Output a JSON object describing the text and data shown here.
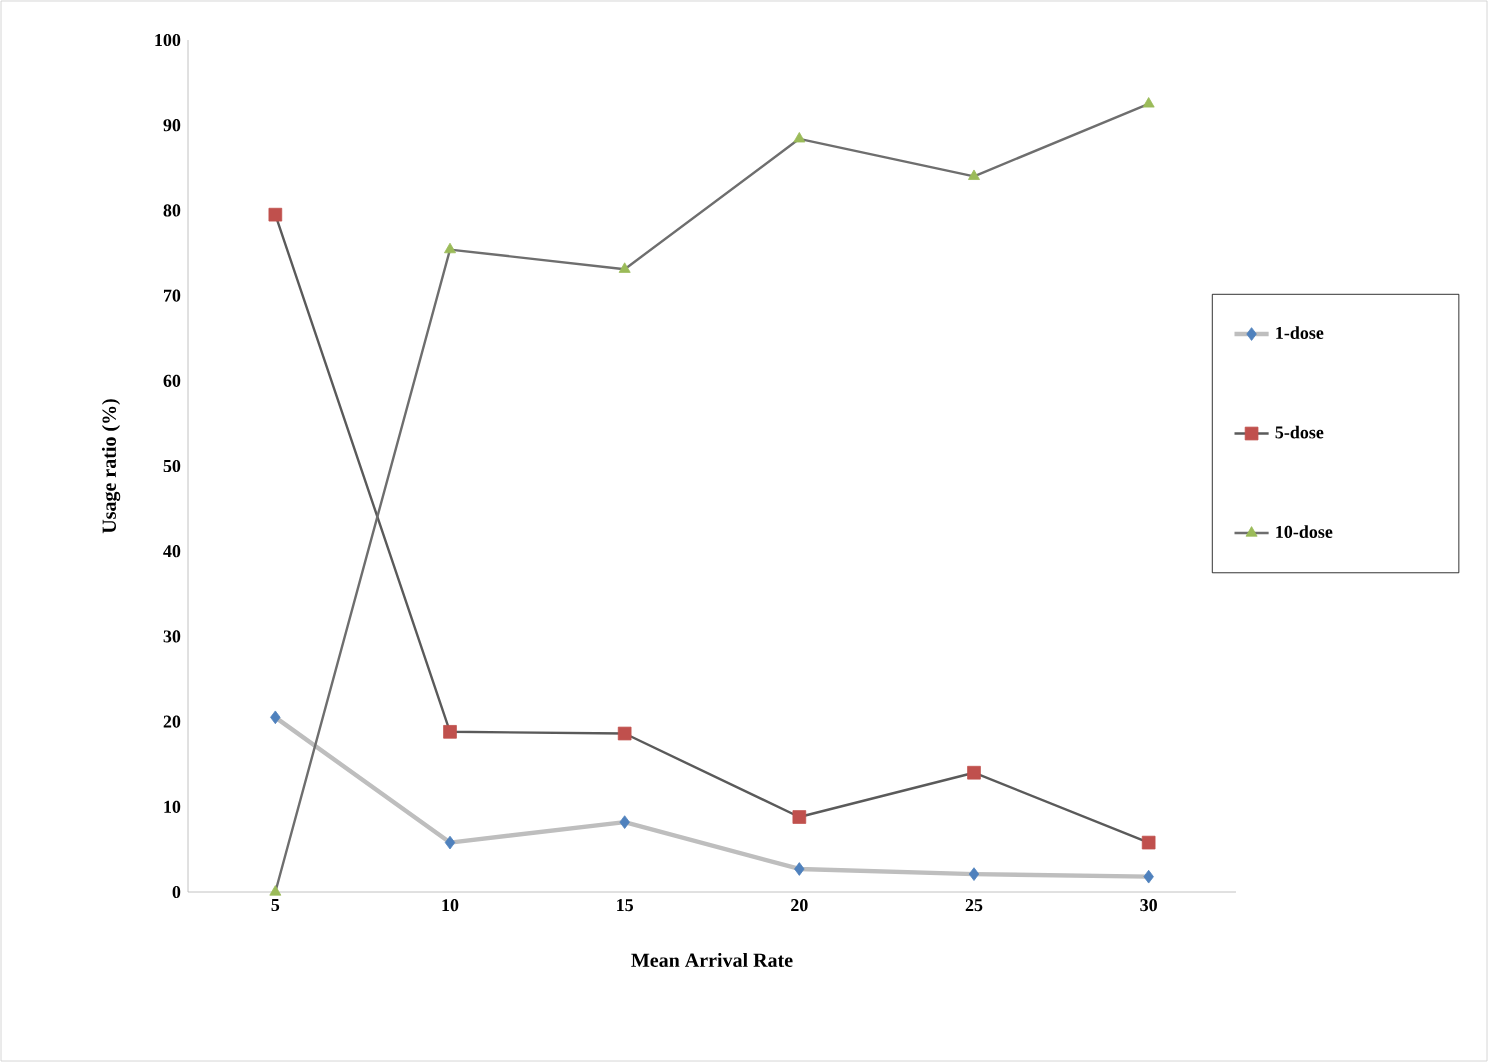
{
  "chart_data": {
    "type": "line",
    "xlabel": "Mean Arrival Rate",
    "ylabel": "Usage ratio (%)",
    "categories": [
      "5",
      "10",
      "15",
      "20",
      "25",
      "30"
    ],
    "series": [
      {
        "name": "1-dose",
        "color": "#4f81bd",
        "marker": "diamond",
        "values": [
          20.5,
          5.8,
          8.2,
          2.7,
          2.1,
          1.8
        ]
      },
      {
        "name": "5-dose",
        "color": "#c0504d",
        "marker": "square",
        "values": [
          79.5,
          18.8,
          18.6,
          8.8,
          14.0,
          5.8
        ]
      },
      {
        "name": "10-dose",
        "color": "#9bbb59",
        "marker": "triangle",
        "values": [
          0,
          75.4,
          73.1,
          88.4,
          84.0,
          92.5
        ]
      }
    ],
    "ylim": [
      0,
      100
    ],
    "yticks": [
      0,
      10,
      20,
      30,
      40,
      50,
      60,
      70,
      80,
      90,
      100
    ],
    "grid": false,
    "legend": "right"
  }
}
